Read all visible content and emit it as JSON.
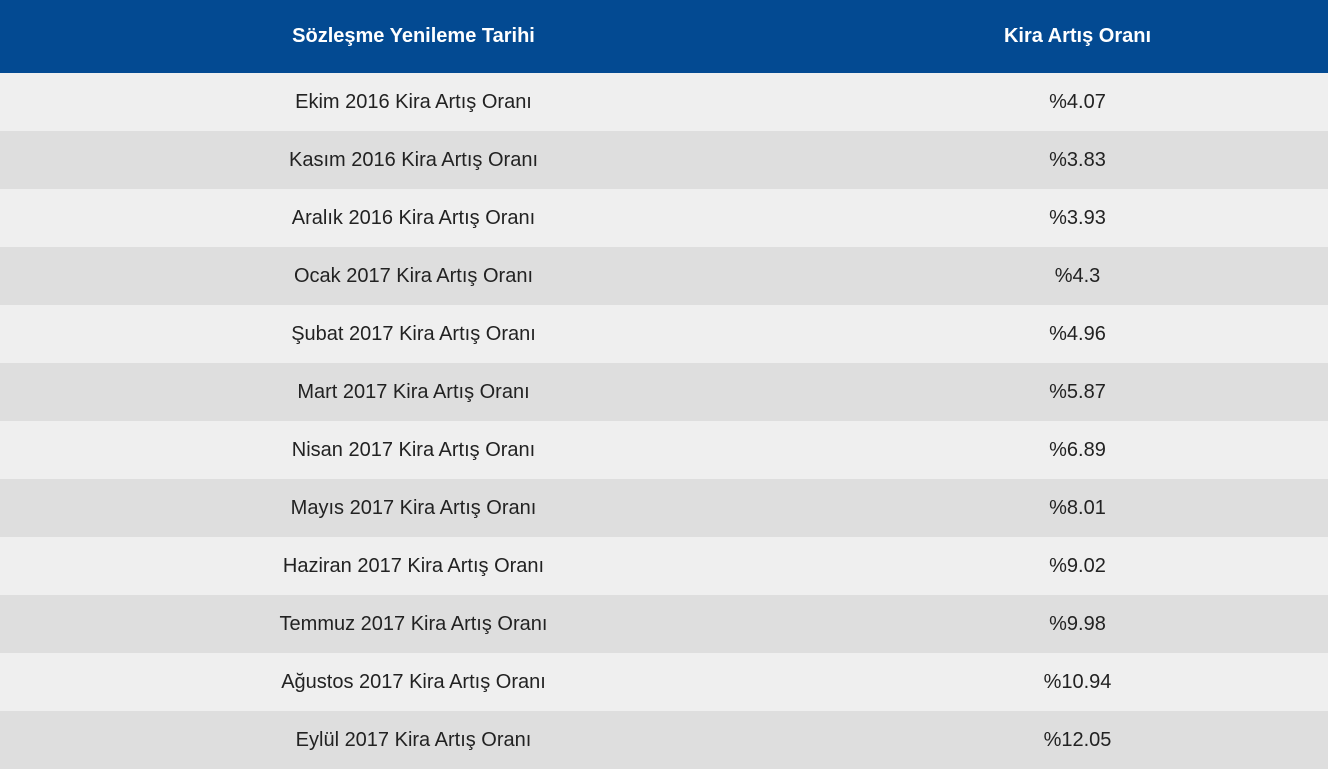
{
  "table": {
    "headers": [
      "Sözleşme Yenileme Tarihi",
      "Kira Artış Oranı"
    ],
    "rows": [
      [
        "Ekim 2016 Kira Artış Oranı",
        "%4.07"
      ],
      [
        "Kasım 2016 Kira Artış Oranı",
        "%3.83"
      ],
      [
        "Aralık 2016 Kira Artış Oranı",
        "%3.93"
      ],
      [
        "Ocak 2017 Kira Artış Oranı",
        "%4.3"
      ],
      [
        "Şubat 2017 Kira Artış Oranı",
        "%4.96"
      ],
      [
        "Mart 2017 Kira Artış Oranı",
        "%5.87"
      ],
      [
        "Nisan 2017 Kira Artış Oranı",
        "%6.89"
      ],
      [
        "Mayıs 2017 Kira Artış Oranı",
        "%8.01"
      ],
      [
        "Haziran 2017 Kira Artış Oranı",
        "%9.02"
      ],
      [
        "Temmuz 2017 Kira Artış Oranı",
        "%9.98"
      ],
      [
        "Ağustos 2017 Kira Artış Oranı",
        "%10.94"
      ],
      [
        "Eylül 2017 Kira Artış Oranı",
        "%12.05"
      ]
    ],
    "colors": {
      "header_bg": "#034a92",
      "row_light": "#efefef",
      "row_dark": "#dedede"
    }
  }
}
